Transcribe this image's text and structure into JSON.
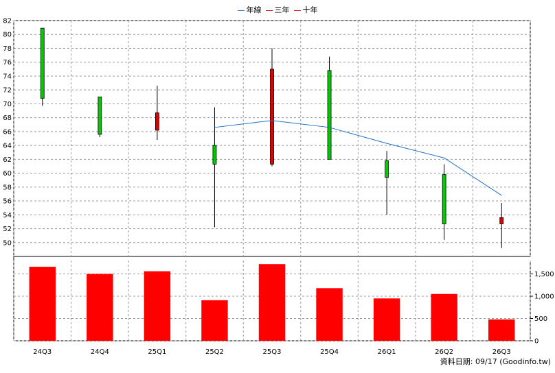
{
  "chart_data": [
    {
      "type": "candlestick",
      "categories": [
        "24Q3",
        "24Q4",
        "25Q1",
        "25Q2",
        "25Q3",
        "25Q4",
        "26Q1",
        "26Q2",
        "26Q3"
      ],
      "ohlc": [
        {
          "open": 70.8,
          "high": 80.9,
          "low": 69.7,
          "close": 80.9
        },
        {
          "open": 65.6,
          "high": 71.0,
          "low": 65.2,
          "close": 71.0
        },
        {
          "open": 68.7,
          "high": 72.6,
          "low": 64.8,
          "close": 66.2
        },
        {
          "open": 61.3,
          "high": 69.5,
          "low": 52.2,
          "close": 64.0
        },
        {
          "open": 75.0,
          "high": 78.0,
          "low": 61.0,
          "close": 61.3
        },
        {
          "open": 62.0,
          "high": 76.8,
          "low": 62.0,
          "close": 74.8
        },
        {
          "open": 59.4,
          "high": 63.2,
          "low": 54.0,
          "close": 61.8
        },
        {
          "open": 52.7,
          "high": 61.3,
          "low": 50.4,
          "close": 59.8
        },
        {
          "open": 53.6,
          "high": 55.7,
          "low": 49.2,
          "close": 52.7
        }
      ],
      "series": [
        {
          "name": "年線",
          "color": "#1f6fc5",
          "x": [
            "25Q2",
            "25Q3",
            "25Q4",
            "26Q1",
            "26Q2",
            "26Q3"
          ],
          "values": [
            66.6,
            67.6,
            66.6,
            64.3,
            62.2,
            56.8
          ]
        }
      ],
      "ylim": [
        48,
        82
      ],
      "yticks": [
        50,
        52,
        54,
        56,
        58,
        60,
        62,
        64,
        66,
        68,
        70,
        72,
        74,
        76,
        78,
        80,
        82
      ],
      "grid": true,
      "colors": {
        "up": "#00cc00",
        "down": "#e00000",
        "wick": "#000000"
      }
    },
    {
      "type": "bar",
      "categories": [
        "24Q3",
        "24Q4",
        "25Q1",
        "25Q2",
        "25Q3",
        "25Q4",
        "26Q1",
        "26Q2",
        "26Q3"
      ],
      "values": [
        1660,
        1500,
        1560,
        910,
        1720,
        1180,
        950,
        1050,
        480
      ],
      "ylim": [
        0,
        1800
      ],
      "yticks": [
        0,
        500,
        1000,
        1500
      ],
      "ytick_labels": [
        "0",
        "500",
        "1,000",
        "1,500"
      ],
      "color": "#ff0000",
      "grid": true
    }
  ],
  "legend": [
    {
      "label": "年線",
      "color": "#1f6fc5"
    },
    {
      "label": "三年",
      "color": "#e00000"
    },
    {
      "label": "十年",
      "color": "#e00000"
    }
  ],
  "footer": "資料日期: 09/17  (Goodinfo.tw)"
}
